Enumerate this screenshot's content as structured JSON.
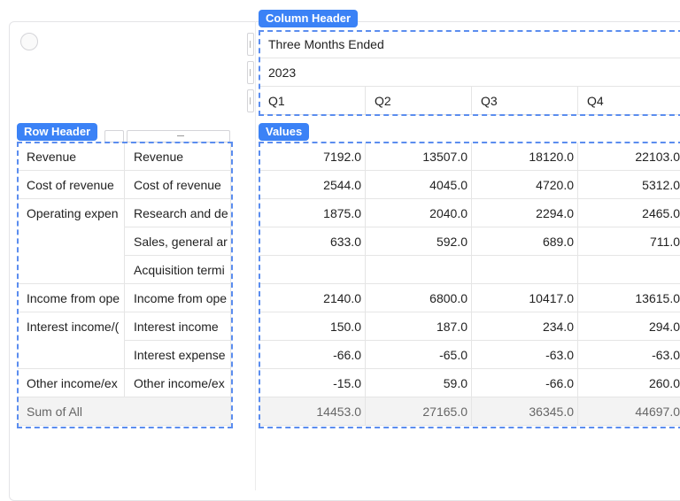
{
  "labels": {
    "column_header": "Column Header",
    "row_header": "Row Header",
    "values": "Values"
  },
  "column_header": {
    "group": "Three Months Ended",
    "year": "2023",
    "quarters": [
      "Q1",
      "Q2",
      "Q3",
      "Q4"
    ]
  },
  "rows": [
    {
      "l1": "Revenue",
      "l2": "Revenue",
      "vals": [
        "7192.0",
        "13507.0",
        "18120.0",
        "22103.0"
      ]
    },
    {
      "l1": "Cost of revenue",
      "l2": "Cost of revenue",
      "vals": [
        "2544.0",
        "4045.0",
        "4720.0",
        "5312.0"
      ]
    },
    {
      "l1": "Operating expen",
      "l2": "Research and de",
      "vals": [
        "1875.0",
        "2040.0",
        "2294.0",
        "2465.0"
      ]
    },
    {
      "l1": "",
      "l2": "Sales, general ar",
      "vals": [
        "633.0",
        "592.0",
        "689.0",
        "711.0"
      ]
    },
    {
      "l1": "",
      "l2": "Acquisition termi",
      "vals": [
        "",
        "",
        "",
        ""
      ]
    },
    {
      "l1": "Income from ope",
      "l2": "Income from ope",
      "vals": [
        "2140.0",
        "6800.0",
        "10417.0",
        "13615.0"
      ]
    },
    {
      "l1": "Interest income/(",
      "l2": "Interest income",
      "vals": [
        "150.0",
        "187.0",
        "234.0",
        "294.0"
      ]
    },
    {
      "l1": "",
      "l2": "Interest expense",
      "vals": [
        "-66.0",
        "-65.0",
        "-63.0",
        "-63.0"
      ]
    },
    {
      "l1": "Other income/ex",
      "l2": "Other income/ex",
      "vals": [
        "-15.0",
        "59.0",
        "-66.0",
        "260.0"
      ]
    }
  ],
  "sum_row": {
    "label": "Sum of All",
    "vals": [
      "14453.0",
      "27165.0",
      "36345.0",
      "44697.0"
    ]
  },
  "colors": {
    "accent": "#3b82f6",
    "dashed": "#5b8def",
    "sum_bg": "#f3f3f3"
  }
}
